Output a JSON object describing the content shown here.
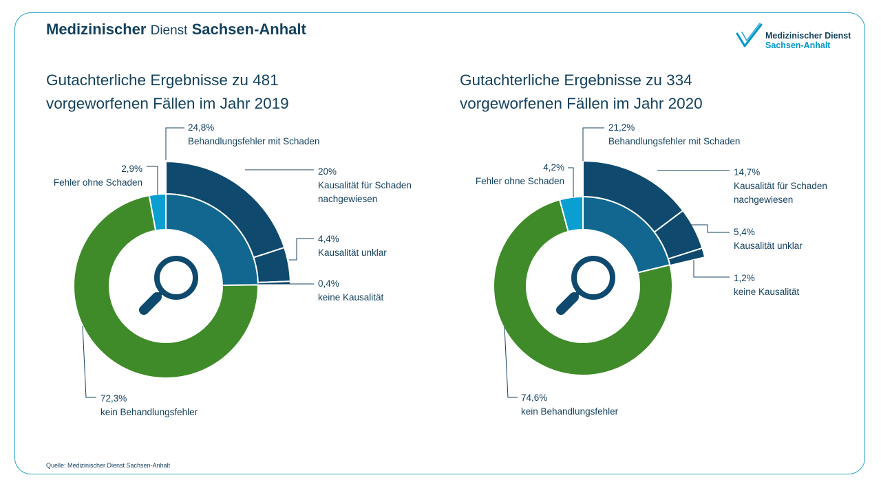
{
  "header": {
    "brand_part1": "Medizinischer",
    "brand_part2": "Dienst",
    "brand_part3": "Sachsen-Anhalt",
    "logo_line1": "Medizinischer Dienst",
    "logo_line2": "Sachsen-Anhalt"
  },
  "footer": {
    "source": "Quelle: Medizinischer Dienst Sachsen-Anhalt"
  },
  "icons": {
    "center": "magnifier-icon",
    "logo": "checkmark-logo-icon"
  },
  "colors": {
    "no_error": "#3f8b29",
    "error_without_damage": "#0a9fd0",
    "error_with_damage": "#0f4a6e",
    "causality_proven": "#11678f",
    "leader_lines": "#14415e",
    "frame": "#2aa3c9"
  },
  "chart_data": [
    {
      "type": "pie",
      "title_line1": "Gutachterliche Ergebnisse zu 481",
      "title_line2": "vorgeworfenen Fällen im Jahr 2019",
      "inner_ring": [
        {
          "label_text": "Behandlungsfehler mit Schaden",
          "value": 24.8,
          "value_text": "24,8%",
          "color": "#0f4a6e"
        },
        {
          "label_text": "kein Behandlungsfehler",
          "value": 72.3,
          "value_text": "72,3%",
          "color": "#3f8b29"
        },
        {
          "label_text": "Fehler ohne Schaden",
          "value": 2.9,
          "value_text": "2,9%",
          "color": "#0a9fd0"
        }
      ],
      "breakdown": [
        {
          "label_lines": [
            "Kausalität für Schaden",
            "nachgewiesen"
          ],
          "value": 20,
          "value_text": "20%"
        },
        {
          "label_lines": [
            "Kausalität unklar"
          ],
          "value": 4.4,
          "value_text": "4,4%"
        },
        {
          "label_lines": [
            "keine Kausalität"
          ],
          "value": 0.4,
          "value_text": "0,4%"
        }
      ]
    },
    {
      "type": "pie",
      "title_line1": "Gutachterliche Ergebnisse zu 334",
      "title_line2": "vorgeworfenen Fällen im Jahr 2020",
      "inner_ring": [
        {
          "label_text": "Behandlungsfehler mit Schaden",
          "value": 21.2,
          "value_text": "21,2%",
          "color": "#0f4a6e"
        },
        {
          "label_text": "kein Behandlungsfehler",
          "value": 74.6,
          "value_text": "74,6%",
          "color": "#3f8b29"
        },
        {
          "label_text": "Fehler ohne Schaden",
          "value": 4.2,
          "value_text": "4,2%",
          "color": "#0a9fd0"
        }
      ],
      "breakdown": [
        {
          "label_lines": [
            "Kausalität für Schaden",
            "nachgewiesen"
          ],
          "value": 14.7,
          "value_text": "14,7%"
        },
        {
          "label_lines": [
            "Kausalität unklar"
          ],
          "value": 5.4,
          "value_text": "5,4%"
        },
        {
          "label_lines": [
            "keine Kausalität"
          ],
          "value": 1.2,
          "value_text": "1,2%"
        }
      ]
    }
  ]
}
